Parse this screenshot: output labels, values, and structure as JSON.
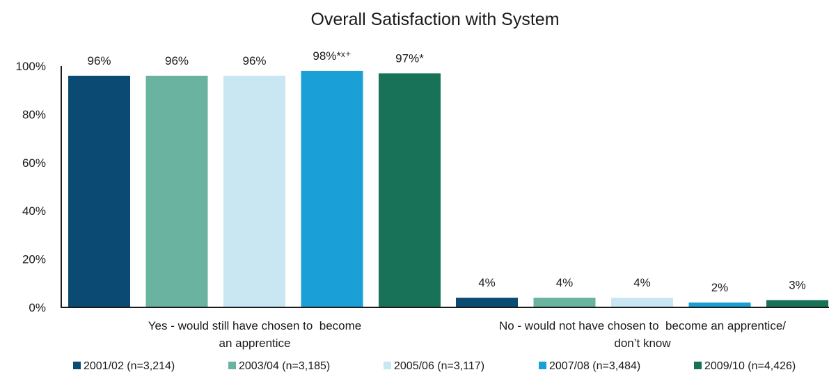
{
  "chart_data": {
    "type": "bar",
    "title": "Overall Satisfaction with System",
    "xlabel": "",
    "ylabel": "",
    "ylim": [
      0,
      100
    ],
    "yticks": [
      "0%",
      "20%",
      "40%",
      "60%",
      "80%",
      "100%"
    ],
    "grid": false,
    "legend_position": "bottom",
    "categories": [
      [
        "Yes - would still have chosen to  become",
        "an apprentice"
      ],
      [
        "No - would not have chosen to  become an apprentice/",
        "don’t know"
      ]
    ],
    "series": [
      {
        "name": "2001/02 (n=3,214)",
        "color": "#0b4a72",
        "values": [
          96,
          4
        ],
        "labels": [
          "96%",
          "4%"
        ]
      },
      {
        "name": "2003/04 (n=3,185)",
        "color": "#6ab3a0",
        "values": [
          96,
          4
        ],
        "labels": [
          "96%",
          "4%"
        ]
      },
      {
        "name": "2005/06 (n=3,117)",
        "color": "#c9e7f3",
        "values": [
          96,
          4
        ],
        "labels": [
          "96%",
          "4%"
        ]
      },
      {
        "name": "2007/08 (n=3,484)",
        "color": "#1a9fd6",
        "values": [
          98,
          2
        ],
        "labels": [
          "98%*ˣ⁺",
          "2%"
        ]
      },
      {
        "name": "2009/10 (n=4,426)",
        "color": "#177258",
        "values": [
          97,
          3
        ],
        "labels": [
          "97%*",
          "3%"
        ]
      }
    ]
  }
}
